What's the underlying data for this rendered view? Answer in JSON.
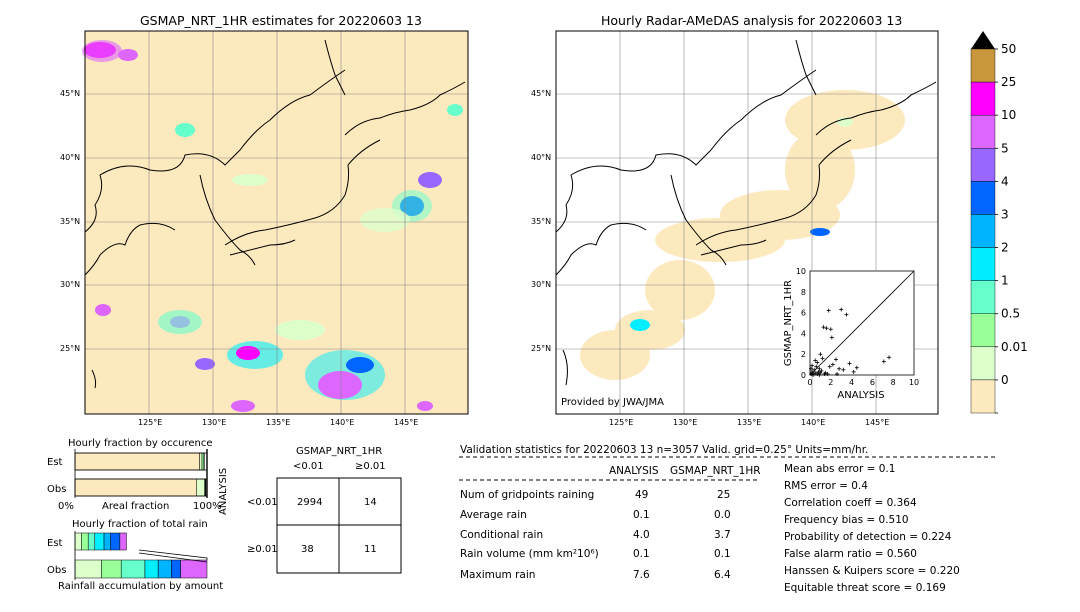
{
  "maps": {
    "left_title": "GSMAP_NRT_1HR estimates for 20220603 13",
    "right_title": "Hourly Radar-AMeDAS analysis for 20220603 13",
    "lat_labels": [
      "45°N",
      "40°N",
      "35°N",
      "30°N",
      "25°N"
    ],
    "lon_labels": [
      "125°E",
      "130°E",
      "135°E",
      "140°E",
      "145°E"
    ],
    "credit": "Provided by JWA/JMA"
  },
  "colorbar": {
    "labels": [
      "50",
      "25",
      "10",
      "5",
      "4",
      "3",
      "2",
      "1",
      "0.5",
      "0.01",
      "0"
    ],
    "colors": [
      "#c8963c",
      "#ff00ff",
      "#dd66ff",
      "#9966ff",
      "#0066ff",
      "#00b4ff",
      "#00eeff",
      "#66ffcc",
      "#99ff99",
      "#ddffcc",
      "#fde9be"
    ],
    "over_color": "#000000"
  },
  "occurrence": {
    "title": "Hourly fraction by occurence",
    "row_est": "Est",
    "row_obs": "Obs",
    "axis_left": "0%",
    "axis_mid": "Areal fraction",
    "axis_right": "100%",
    "est_segments": [
      0.944,
      0.018,
      0.014,
      0.004
    ],
    "obs_segments": [
      0.922,
      0.06,
      0.006,
      0.004
    ]
  },
  "total_rain": {
    "title": "Hourly fraction of total rain",
    "row_est": "Est",
    "row_obs": "Obs",
    "bottom": "Rainfall accumulation by amount",
    "est_segments": [
      0.05,
      0.05,
      0.05,
      0.07,
      0.05,
      0.07,
      0.05
    ],
    "obs_segments": [
      0.2,
      0.15,
      0.18,
      0.1,
      0.1,
      0.07,
      0.2
    ]
  },
  "contingency": {
    "title": "GSMAP_NRT_1HR",
    "col_low": "<0.01",
    "col_high": "≥0.01",
    "row_axis": "ANALYSIS",
    "row_low": "<0.01",
    "row_high": "≥0.01",
    "cells": [
      "2994",
      "14",
      "38",
      "11"
    ]
  },
  "validation": {
    "header": "Validation statistics for 20220603 13  n=3057 Valid. grid=0.25° Units=mm/hr.",
    "col_analysis": "ANALYSIS",
    "col_gsmap": "GSMAP_NRT_1HR",
    "rows": [
      {
        "label": "Num of gridpoints raining",
        "a": "49",
        "g": "25"
      },
      {
        "label": "Average rain",
        "a": "0.1",
        "g": "0.0"
      },
      {
        "label": "Conditional rain",
        "a": "4.0",
        "g": "3.7"
      },
      {
        "label": "Rain volume (mm km²10⁶)",
        "a": "0.1",
        "g": "0.1"
      },
      {
        "label": "Maximum rain",
        "a": "7.6",
        "g": "6.4"
      }
    ],
    "scores": [
      "Mean abs error =    0.1",
      "RMS error =    0.4",
      "Correlation coeff =  0.364",
      "Frequency bias =  0.510",
      "Probability of detection =  0.224",
      "False alarm ratio =  0.560",
      "Hanssen & Kuipers score =  0.220",
      "Equitable threat score =  0.169"
    ]
  },
  "chart_data": {
    "type": "scatter",
    "xlabel": "ANALYSIS",
    "ylabel": "GSMAP_NRT_1HR",
    "xlim": [
      0,
      10
    ],
    "ylim": [
      0,
      10
    ],
    "ticks": [
      "0",
      "2",
      "4",
      "6",
      "8",
      "10"
    ],
    "diagonal": true,
    "points": [
      [
        0.1,
        0.1
      ],
      [
        0.2,
        0.3
      ],
      [
        0.3,
        0.1
      ],
      [
        0.4,
        0.5
      ],
      [
        0.5,
        0.2
      ],
      [
        0.6,
        0.8
      ],
      [
        0.7,
        1.2
      ],
      [
        0.8,
        0.3
      ],
      [
        0.9,
        0.6
      ],
      [
        1.0,
        2.0
      ],
      [
        1.1,
        0.4
      ],
      [
        1.2,
        1.6
      ],
      [
        1.3,
        4.6
      ],
      [
        1.5,
        0.2
      ],
      [
        1.6,
        4.5
      ],
      [
        1.8,
        6.2
      ],
      [
        1.9,
        0.8
      ],
      [
        2.0,
        4.4
      ],
      [
        2.1,
        3.6
      ],
      [
        2.2,
        1.0
      ],
      [
        2.5,
        1.5
      ],
      [
        2.8,
        0.6
      ],
      [
        3.0,
        6.3
      ],
      [
        3.2,
        0.5
      ],
      [
        3.5,
        5.8
      ],
      [
        3.8,
        1.1
      ],
      [
        4.2,
        0.3
      ],
      [
        4.5,
        0.7
      ],
      [
        7.1,
        1.3
      ],
      [
        7.6,
        1.7
      ],
      [
        0.2,
        0.9
      ],
      [
        0.5,
        1.4
      ],
      [
        0.7,
        0.1
      ],
      [
        1.0,
        0.2
      ],
      [
        1.4,
        0.1
      ],
      [
        2.6,
        0.1
      ],
      [
        0.3,
        0.0
      ],
      [
        0.1,
        0.6
      ],
      [
        0.9,
        0.0
      ],
      [
        1.7,
        0.1
      ]
    ]
  }
}
